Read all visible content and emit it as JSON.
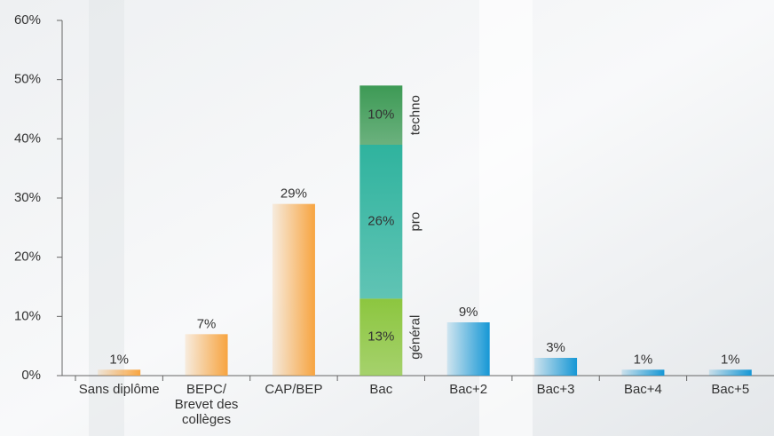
{
  "chart_data": {
    "type": "bar",
    "categories": [
      "Sans diplôme",
      "BEPC/\nBrevet des\ncollèges",
      "CAP/BEP",
      "Bac",
      "Bac+2",
      "Bac+3",
      "Bac+4",
      "Bac+5"
    ],
    "values": [
      1,
      7,
      29,
      null,
      9,
      3,
      1,
      1
    ],
    "value_labels": [
      "1%",
      "7%",
      "29%",
      null,
      "9%",
      "3%",
      "1%",
      "1%"
    ],
    "colors": [
      "#f7a440",
      "#f7a440",
      "#f7a440",
      null,
      "#1597d5",
      "#1597d5",
      "#1597d5",
      "#1597d5"
    ],
    "series": [
      {
        "name": "général",
        "color": "#8cc63f",
        "values": [
          null,
          null,
          null,
          13,
          null,
          null,
          null,
          null
        ],
        "value_labels": [
          null,
          null,
          null,
          "13%",
          null,
          null,
          null,
          null
        ]
      },
      {
        "name": "pro",
        "color": "#2fb39e",
        "values": [
          null,
          null,
          null,
          26,
          null,
          null,
          null,
          null
        ],
        "value_labels": [
          null,
          null,
          null,
          "26%",
          null,
          null,
          null,
          null
        ]
      },
      {
        "name": "techno",
        "color": "#3d9a55",
        "values": [
          null,
          null,
          null,
          10,
          null,
          null,
          null,
          null
        ],
        "value_labels": [
          null,
          null,
          null,
          "10%",
          null,
          null,
          null,
          null
        ]
      }
    ],
    "ylim": [
      0,
      60
    ],
    "yticks": [
      {
        "value": 0,
        "label": "0%"
      },
      {
        "value": 10,
        "label": "10%"
      },
      {
        "value": 20,
        "label": "20%"
      },
      {
        "value": 30,
        "label": "30%"
      },
      {
        "value": 40,
        "label": "40%"
      },
      {
        "value": 50,
        "label": "50%"
      },
      {
        "value": 60,
        "label": "60%"
      }
    ]
  }
}
